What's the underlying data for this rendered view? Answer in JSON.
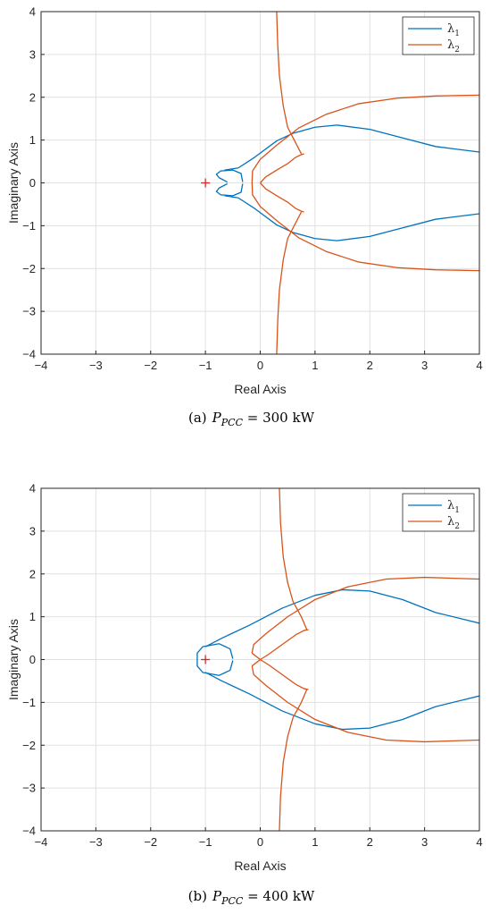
{
  "chart_data": [
    {
      "type": "line",
      "panel": "a",
      "caption": {
        "letter": "(a)",
        "var": "P",
        "sub": "PCC",
        "rest": " = 300 kW"
      },
      "xlabel": "Real Axis",
      "ylabel": "Imaginary Axis",
      "xlim": [
        -4,
        4
      ],
      "ylim": [
        -4,
        4
      ],
      "xticks": [
        -4,
        -3,
        -2,
        -1,
        0,
        1,
        2,
        3,
        4
      ],
      "yticks": [
        -4,
        -3,
        -2,
        -1,
        0,
        1,
        2,
        3,
        4
      ],
      "grid": true,
      "legend_position": "top-right",
      "legend": [
        "λ1",
        "λ2"
      ],
      "marker": {
        "x": -1,
        "y": 0,
        "symbol": "+",
        "color": "#d62728"
      },
      "series": [
        {
          "name": "λ1",
          "color": "#0072bd",
          "paths": [
            [
              [
                -0.6,
                0.02
              ],
              [
                -0.75,
                0.12
              ],
              [
                -0.8,
                0.2
              ],
              [
                -0.72,
                0.28
              ],
              [
                -0.5,
                0.3
              ],
              [
                -0.35,
                0.22
              ],
              [
                -0.32,
                0.02
              ]
            ],
            [
              [
                -0.6,
                -0.02
              ],
              [
                -0.75,
                -0.12
              ],
              [
                -0.8,
                -0.2
              ],
              [
                -0.72,
                -0.28
              ],
              [
                -0.5,
                -0.3
              ],
              [
                -0.35,
                -0.22
              ],
              [
                -0.32,
                -0.02
              ]
            ],
            [
              [
                -0.65,
                0.3
              ],
              [
                -0.4,
                0.35
              ],
              [
                -0.1,
                0.6
              ],
              [
                0.3,
                0.98
              ],
              [
                0.6,
                1.16
              ],
              [
                1.0,
                1.3
              ],
              [
                1.4,
                1.35
              ],
              [
                2.0,
                1.25
              ],
              [
                2.6,
                1.05
              ],
              [
                3.2,
                0.85
              ],
              [
                4.0,
                0.72
              ]
            ],
            [
              [
                -0.65,
                -0.3
              ],
              [
                -0.4,
                -0.35
              ],
              [
                -0.1,
                -0.6
              ],
              [
                0.3,
                -0.98
              ],
              [
                0.6,
                -1.16
              ],
              [
                1.0,
                -1.3
              ],
              [
                1.4,
                -1.35
              ],
              [
                2.0,
                -1.25
              ],
              [
                2.6,
                -1.05
              ],
              [
                3.2,
                -0.85
              ],
              [
                4.0,
                -0.72
              ]
            ]
          ]
        },
        {
          "name": "λ2",
          "color": "#d95319",
          "paths": [
            [
              [
                0.3,
                4.0
              ],
              [
                0.32,
                3.2
              ],
              [
                0.35,
                2.5
              ],
              [
                0.42,
                1.8
              ],
              [
                0.5,
                1.3
              ],
              [
                0.6,
                1.05
              ],
              [
                0.75,
                0.68
              ]
            ],
            [
              [
                0.3,
                -4.0
              ],
              [
                0.32,
                -3.2
              ],
              [
                0.35,
                -2.5
              ],
              [
                0.42,
                -1.8
              ],
              [
                0.5,
                -1.3
              ],
              [
                0.6,
                -1.05
              ],
              [
                0.75,
                -0.68
              ]
            ],
            [
              [
                -0.15,
                0.0
              ],
              [
                -0.14,
                0.28
              ],
              [
                0.0,
                0.55
              ],
              [
                0.3,
                0.88
              ],
              [
                0.7,
                1.28
              ],
              [
                1.2,
                1.6
              ],
              [
                1.8,
                1.85
              ],
              [
                2.5,
                1.98
              ],
              [
                3.2,
                2.03
              ],
              [
                4.0,
                2.05
              ]
            ],
            [
              [
                -0.15,
                0.0
              ],
              [
                -0.14,
                -0.28
              ],
              [
                0.0,
                -0.55
              ],
              [
                0.3,
                -0.88
              ],
              [
                0.7,
                -1.28
              ],
              [
                1.2,
                -1.6
              ],
              [
                1.8,
                -1.85
              ],
              [
                2.5,
                -1.98
              ],
              [
                3.2,
                -2.03
              ],
              [
                4.0,
                -2.05
              ]
            ],
            [
              [
                0.0,
                0.0
              ],
              [
                0.1,
                0.14
              ],
              [
                0.3,
                0.3
              ],
              [
                0.5,
                0.45
              ],
              [
                0.65,
                0.6
              ],
              [
                0.75,
                0.66
              ],
              [
                0.8,
                0.68
              ]
            ],
            [
              [
                0.0,
                0.0
              ],
              [
                0.1,
                -0.14
              ],
              [
                0.3,
                -0.3
              ],
              [
                0.5,
                -0.45
              ],
              [
                0.65,
                -0.6
              ],
              [
                0.75,
                -0.66
              ],
              [
                0.8,
                -0.68
              ]
            ]
          ]
        }
      ]
    },
    {
      "type": "line",
      "panel": "b",
      "caption": {
        "letter": "(b)",
        "var": "P",
        "sub": "PCC",
        "rest": " = 400 kW"
      },
      "xlabel": "Real Axis",
      "ylabel": "Imaginary Axis",
      "xlim": [
        -4,
        4
      ],
      "ylim": [
        -4,
        4
      ],
      "xticks": [
        -4,
        -3,
        -2,
        -1,
        0,
        1,
        2,
        3,
        4
      ],
      "yticks": [
        -4,
        -3,
        -2,
        -1,
        0,
        1,
        2,
        3,
        4
      ],
      "grid": true,
      "legend_position": "top-right",
      "legend": [
        "λ1",
        "λ2"
      ],
      "marker": {
        "x": -1,
        "y": 0,
        "symbol": "+",
        "color": "#d62728"
      },
      "series": [
        {
          "name": "λ1",
          "color": "#0072bd",
          "paths": [
            [
              [
                -0.5,
                0.02
              ],
              [
                -0.55,
                0.25
              ],
              [
                -0.75,
                0.37
              ],
              [
                -1.05,
                0.3
              ],
              [
                -1.15,
                0.15
              ],
              [
                -1.15,
                0.0
              ]
            ],
            [
              [
                -0.5,
                -0.02
              ],
              [
                -0.55,
                -0.25
              ],
              [
                -0.75,
                -0.37
              ],
              [
                -1.05,
                -0.3
              ],
              [
                -1.15,
                -0.15
              ],
              [
                -1.15,
                0.0
              ]
            ],
            [
              [
                -1.0,
                0.3
              ],
              [
                -0.7,
                0.5
              ],
              [
                -0.2,
                0.8
              ],
              [
                0.4,
                1.2
              ],
              [
                1.0,
                1.5
              ],
              [
                1.5,
                1.63
              ],
              [
                2.0,
                1.6
              ],
              [
                2.6,
                1.4
              ],
              [
                3.2,
                1.1
              ],
              [
                4.0,
                0.85
              ]
            ],
            [
              [
                -1.0,
                -0.3
              ],
              [
                -0.7,
                -0.5
              ],
              [
                -0.2,
                -0.8
              ],
              [
                0.4,
                -1.2
              ],
              [
                1.0,
                -1.5
              ],
              [
                1.5,
                -1.63
              ],
              [
                2.0,
                -1.6
              ],
              [
                2.6,
                -1.4
              ],
              [
                3.2,
                -1.1
              ],
              [
                4.0,
                -0.85
              ]
            ]
          ]
        },
        {
          "name": "λ2",
          "color": "#d95319",
          "paths": [
            [
              [
                0.35,
                4.0
              ],
              [
                0.37,
                3.2
              ],
              [
                0.42,
                2.4
              ],
              [
                0.5,
                1.8
              ],
              [
                0.6,
                1.35
              ],
              [
                0.75,
                1.0
              ],
              [
                0.85,
                0.7
              ]
            ],
            [
              [
                0.35,
                -4.0
              ],
              [
                0.37,
                -3.2
              ],
              [
                0.42,
                -2.4
              ],
              [
                0.5,
                -1.8
              ],
              [
                0.6,
                -1.35
              ],
              [
                0.75,
                -1.0
              ],
              [
                0.85,
                -0.7
              ]
            ],
            [
              [
                -0.15,
                0.15
              ],
              [
                -0.12,
                0.35
              ],
              [
                0.1,
                0.6
              ],
              [
                0.5,
                1.0
              ],
              [
                1.0,
                1.4
              ],
              [
                1.6,
                1.7
              ],
              [
                2.3,
                1.88
              ],
              [
                3.0,
                1.92
              ],
              [
                4.0,
                1.88
              ]
            ],
            [
              [
                -0.15,
                -0.15
              ],
              [
                -0.12,
                -0.35
              ],
              [
                0.1,
                -0.6
              ],
              [
                0.5,
                -1.0
              ],
              [
                1.0,
                -1.4
              ],
              [
                1.6,
                -1.7
              ],
              [
                2.3,
                -1.88
              ],
              [
                3.0,
                -1.92
              ],
              [
                4.0,
                -1.88
              ]
            ],
            [
              [
                -0.15,
                0.15
              ],
              [
                0.0,
                0.0
              ]
            ],
            [
              [
                0.0,
                0.0
              ],
              [
                0.15,
                0.12
              ],
              [
                0.4,
                0.35
              ],
              [
                0.65,
                0.58
              ],
              [
                0.8,
                0.68
              ],
              [
                0.88,
                0.7
              ]
            ],
            [
              [
                0.0,
                0.0
              ],
              [
                0.15,
                -0.12
              ],
              [
                0.4,
                -0.35
              ],
              [
                0.65,
                -0.58
              ],
              [
                0.8,
                -0.68
              ],
              [
                0.88,
                -0.7
              ]
            ],
            [
              [
                -0.15,
                -0.15
              ],
              [
                0.0,
                0.0
              ]
            ]
          ]
        }
      ]
    }
  ]
}
